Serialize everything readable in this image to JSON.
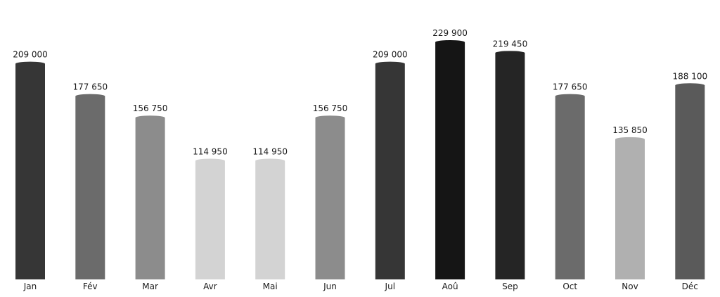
{
  "chart_data": {
    "type": "bar",
    "categories": [
      "Jan",
      "Fév",
      "Mar",
      "Avr",
      "Mai",
      "Jun",
      "Jul",
      "Aoû",
      "Sep",
      "Oct",
      "Nov",
      "Déc"
    ],
    "values": [
      209000,
      177650,
      156750,
      114950,
      114950,
      156750,
      209000,
      229900,
      219450,
      177650,
      135850,
      188100
    ],
    "value_labels": [
      "209 000",
      "177 650",
      "156 750",
      "114 950",
      "114 950",
      "156 750",
      "209 000",
      "229 900",
      "219 450",
      "177 650",
      "135 850",
      "188 100"
    ],
    "colors": [
      "#363636",
      "#6b6b6b",
      "#8c8c8c",
      "#d3d3d3",
      "#d3d3d3",
      "#8c8c8c",
      "#363636",
      "#151515",
      "#252525",
      "#6b6b6b",
      "#b0b0b0",
      "#5a5a5a"
    ],
    "title": "",
    "xlabel": "",
    "ylabel": "",
    "ylim": [
      0,
      229900
    ],
    "grid": false,
    "legend": "none"
  }
}
